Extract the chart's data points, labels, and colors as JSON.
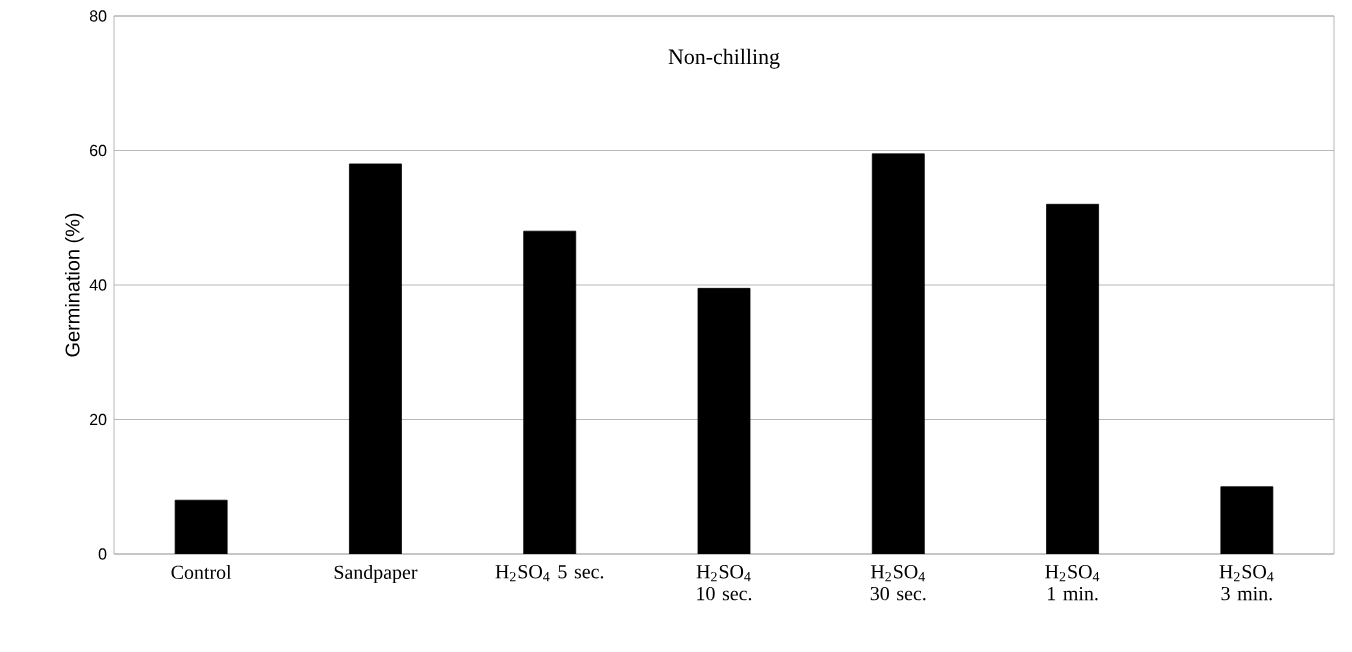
{
  "chart_data": {
    "type": "bar",
    "title": "Non-chilling",
    "ylabel": "Germination (%)",
    "categories": [
      "Control",
      "Sandpaper",
      "H$_{2}$SO$_{4}$ 5 sec.",
      "H$_{2}$SO$_{4}$ 10 sec.",
      "H$_{2}$SO$_{4}$ 30 sec.",
      "H$_{2}$SO$_{4}$ 1 min.",
      "H$_{2}$SO$_{4}$ 3 min."
    ],
    "values": [
      8,
      58,
      48,
      39.5,
      59.5,
      52,
      10
    ],
    "color": "#000000",
    "ylim": [
      0,
      80
    ],
    "yticks": [
      0,
      20,
      40,
      60,
      80
    ],
    "grid": "y"
  }
}
